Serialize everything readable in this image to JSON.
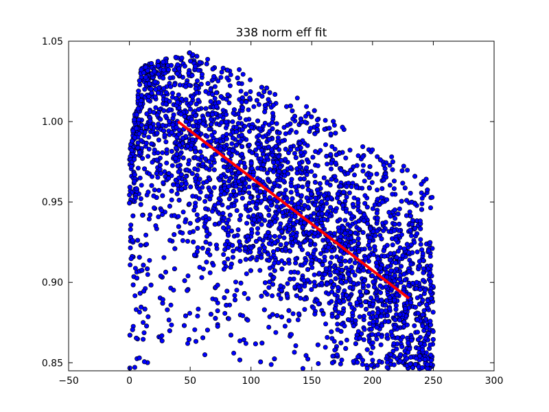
{
  "chart_data": {
    "type": "scatter",
    "title": "338 norm eff fit",
    "xlabel": "",
    "ylabel": "",
    "xlim": [
      -50,
      300
    ],
    "ylim": [
      0.845,
      1.05
    ],
    "xticks": [
      -50,
      0,
      50,
      100,
      150,
      200,
      250,
      300
    ],
    "yticks": [
      0.85,
      0.9,
      0.95,
      1.0,
      1.05
    ],
    "xtick_labels": [
      "−50",
      "0",
      "50",
      "100",
      "150",
      "200",
      "250",
      "300"
    ],
    "ytick_labels": [
      "0.85",
      "0.90",
      "0.95",
      "1.00",
      "1.05"
    ],
    "grid": false,
    "legend": "none",
    "series": [
      {
        "kind": "scatter",
        "color": "#0000ff",
        "edge_color": "#000000",
        "x_range": [
          0,
          250
        ],
        "density_profile": [
          {
            "x": 0,
            "y_min": 0.845,
            "y_max": 0.98
          },
          {
            "x": 10,
            "y_min": 0.845,
            "y_max": 1.035
          },
          {
            "x": 50,
            "y_min": 0.85,
            "y_max": 1.043
          },
          {
            "x": 100,
            "y_min": 0.85,
            "y_max": 1.03
          },
          {
            "x": 150,
            "y_min": 0.845,
            "y_max": 1.01
          },
          {
            "x": 200,
            "y_min": 0.845,
            "y_max": 0.985
          },
          {
            "x": 250,
            "y_min": 0.845,
            "y_max": 0.965
          }
        ]
      },
      {
        "kind": "line",
        "color": "#ff0000",
        "x": [
          40,
          230
        ],
        "y": [
          1.0,
          0.89
        ]
      }
    ]
  }
}
